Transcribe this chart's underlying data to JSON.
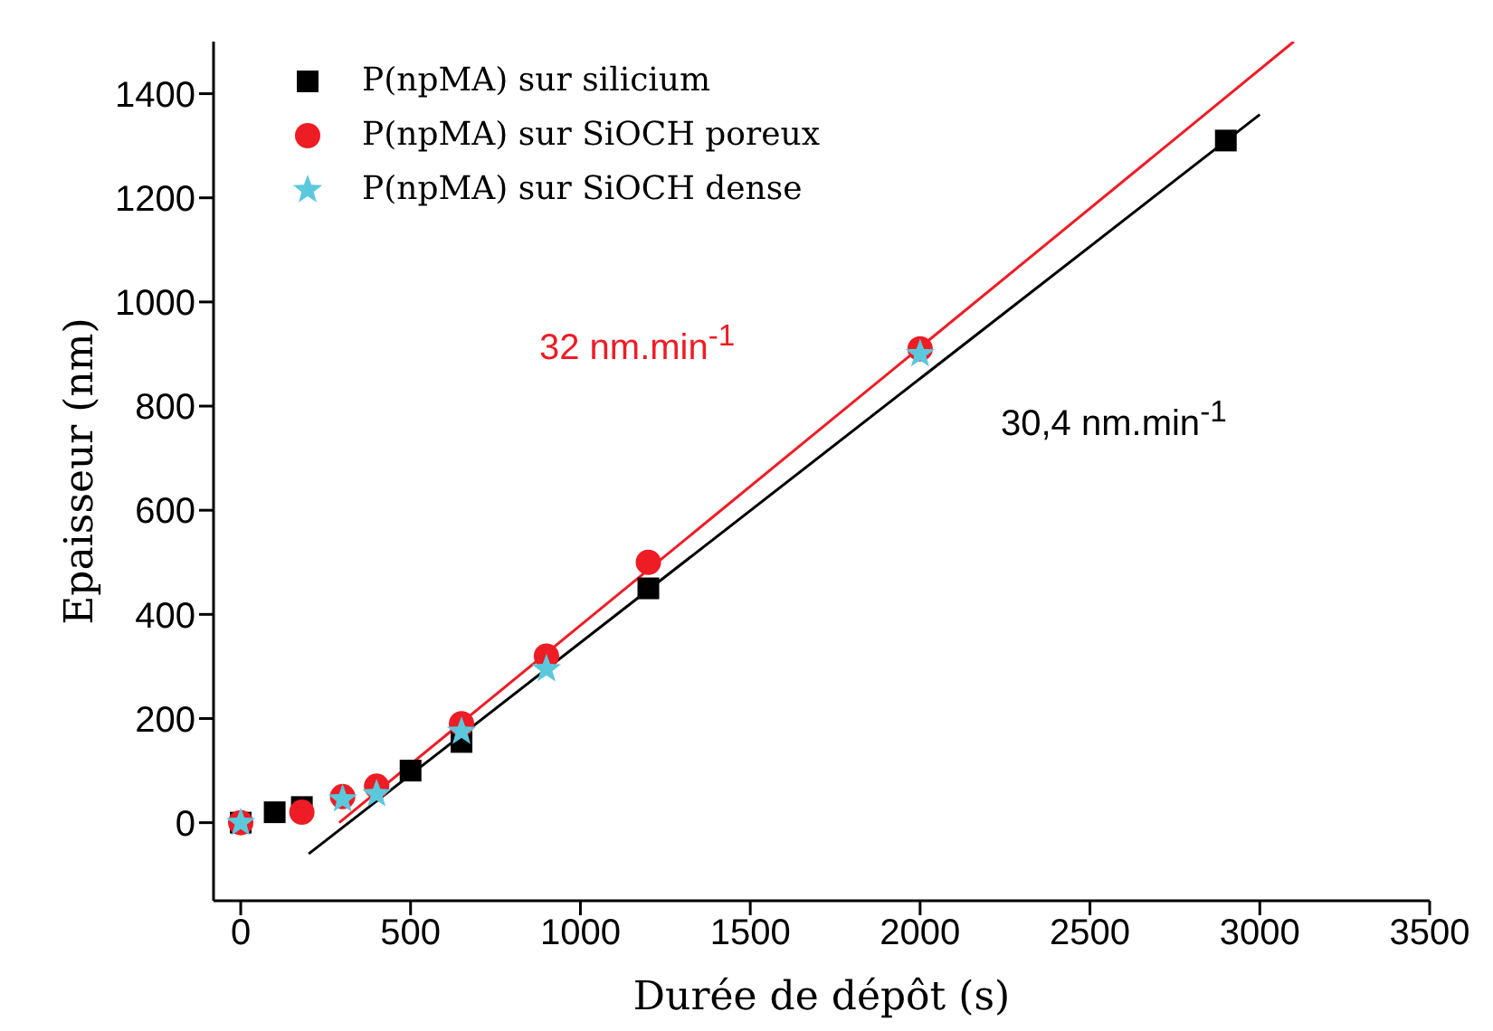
{
  "chart_data": {
    "type": "scatter",
    "xlabel": "Durée de dépôt (s)",
    "ylabel": "Epaisseur (nm)",
    "xlim": [
      -80,
      3500
    ],
    "xticks": [
      0,
      500,
      1000,
      1500,
      2000,
      2500,
      3000,
      3500
    ],
    "ylim": [
      -150,
      1500
    ],
    "yticks": [
      0,
      200,
      400,
      600,
      800,
      1000,
      1200,
      1400
    ],
    "grid": false,
    "legend": "top left",
    "series": [
      {
        "name": "P(npMA) sur silicium",
        "color": "#000000",
        "marker": "square",
        "x": [
          0,
          100,
          180,
          500,
          650,
          1200,
          2900
        ],
        "values": [
          0,
          20,
          30,
          100,
          155,
          450,
          1310
        ]
      },
      {
        "name": "P(npMA) sur SiOCH poreux",
        "color": "#ee1c25",
        "marker": "circle",
        "x": [
          0,
          180,
          300,
          400,
          650,
          900,
          1200,
          2000
        ],
        "values": [
          0,
          20,
          50,
          70,
          190,
          320,
          500,
          910
        ]
      },
      {
        "name": "P(npMA) sur SiOCH dense",
        "color": "#5bc8dc",
        "marker": "star",
        "x": [
          0,
          300,
          400,
          650,
          900,
          2000
        ],
        "values": [
          0,
          45,
          55,
          175,
          295,
          900
        ]
      },
      {
        "type": "line",
        "color": "#ee1c25",
        "marker": "none",
        "x": [
          290,
          3100
        ],
        "values": [
          0,
          1500
        ]
      },
      {
        "type": "line",
        "color": "#000000",
        "marker": "none",
        "x": [
          200,
          3000
        ],
        "values": [
          -60,
          1360
        ]
      }
    ],
    "annotations": [
      "32 nm.min$^{-1}$",
      "30,4 nm.min$^{-1}$"
    ]
  }
}
